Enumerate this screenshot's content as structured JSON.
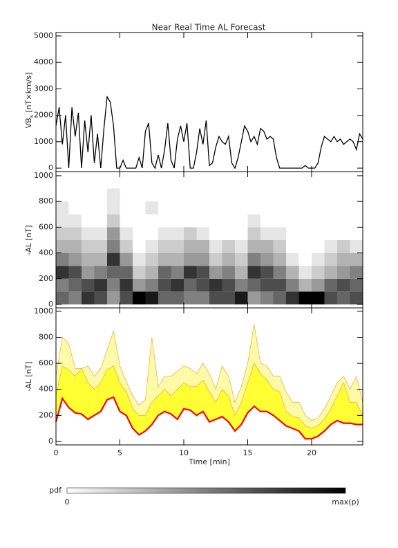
{
  "chart_data": [
    {
      "type": "line",
      "title": "Near Real Time AL Forecast",
      "y_label": {
        "main": "VB",
        "sub": "s",
        "unit": " [nT×km/s]"
      },
      "xlim": [
        0,
        24
      ],
      "xticks": [
        0,
        5,
        10,
        15,
        20
      ],
      "ylim": [
        -130,
        5130
      ],
      "yticks": [
        0,
        1000,
        2000,
        3000,
        4000,
        5000
      ],
      "color": "#000000",
      "x": [
        0,
        0.25,
        0.5,
        0.75,
        1,
        1.25,
        1.5,
        1.75,
        2,
        2.25,
        2.5,
        2.75,
        3,
        3.25,
        3.5,
        3.75,
        4,
        4.25,
        4.5,
        4.75,
        5,
        5.25,
        5.5,
        5.75,
        6,
        6.25,
        6.5,
        6.75,
        7,
        7.25,
        7.5,
        7.75,
        8,
        8.25,
        8.5,
        8.75,
        9,
        9.25,
        9.5,
        9.75,
        10,
        10.25,
        10.5,
        10.75,
        11,
        11.25,
        11.5,
        11.75,
        12,
        12.25,
        12.5,
        12.75,
        13,
        13.25,
        13.5,
        13.75,
        14,
        14.25,
        14.5,
        14.75,
        15,
        15.25,
        15.5,
        15.75,
        16,
        16.25,
        16.5,
        16.75,
        17,
        17.25,
        17.5,
        17.75,
        18,
        18.25,
        18.5,
        18.75,
        19,
        19.25,
        19.5,
        19.75,
        20,
        20.25,
        20.5,
        20.75,
        21,
        21.25,
        21.5,
        21.75,
        22,
        22.25,
        22.5,
        22.75,
        23,
        23.25,
        23.5,
        23.75,
        24
      ],
      "values": [
        1600,
        2300,
        900,
        2000,
        0,
        2300,
        1200,
        2100,
        0,
        1800,
        600,
        2000,
        200,
        1300,
        0,
        1500,
        2700,
        2500,
        1600,
        0,
        0,
        300,
        0,
        0,
        0,
        0,
        400,
        0,
        1400,
        1700,
        200,
        0,
        500,
        0,
        700,
        1700,
        300,
        0,
        1100,
        1600,
        1000,
        1700,
        0,
        0,
        600,
        1500,
        900,
        1800,
        100,
        200,
        800,
        1200,
        1000,
        900,
        1200,
        200,
        0,
        400,
        1000,
        1600,
        1400,
        1000,
        1200,
        900,
        1500,
        1400,
        1100,
        1200,
        1100,
        400,
        0,
        0,
        0,
        0,
        0,
        0,
        0,
        0,
        100,
        0,
        0,
        0,
        200,
        800,
        1200,
        1100,
        1000,
        1200,
        1000,
        1100,
        900,
        1000,
        1100,
        1000,
        700,
        1300,
        1100
      ]
    },
    {
      "type": "heatmap",
      "y_label": "-AL [nT]",
      "xlim": [
        0,
        24
      ],
      "xticks": [
        0,
        5,
        10,
        15,
        20
      ],
      "ylim": [
        -27,
        1032
      ],
      "yticks": [
        0,
        200,
        400,
        600,
        800,
        1000
      ],
      "x_bins": [
        0,
        1,
        2,
        3,
        4,
        5,
        6,
        7,
        8,
        9,
        10,
        11,
        12,
        13,
        14,
        15,
        16,
        17,
        18,
        19,
        20,
        21,
        22,
        23,
        24
      ],
      "y_bins": [
        0,
        100,
        200,
        300,
        400,
        500,
        600,
        700,
        800,
        900,
        1000
      ],
      "values": [
        [
          0.6,
          0.5,
          0.8,
          0.5,
          0.3,
          0.2,
          0.1,
          0.1,
          0,
          0
        ],
        [
          0.5,
          0.6,
          0.7,
          0.4,
          0.3,
          0.2,
          0.1,
          0,
          0,
          0
        ],
        [
          0.8,
          0.7,
          0.4,
          0.3,
          0.2,
          0.1,
          0,
          0,
          0,
          0
        ],
        [
          0.7,
          0.8,
          0.5,
          0.3,
          0.2,
          0.1,
          0,
          0,
          0,
          0
        ],
        [
          0.4,
          0.5,
          0.6,
          0.8,
          0.5,
          0.4,
          0.2,
          0.1,
          0.1,
          0
        ],
        [
          0.7,
          0.8,
          0.6,
          0.4,
          0.2,
          0.1,
          0,
          0,
          0,
          0
        ],
        [
          1,
          0.4,
          0.2,
          0.1,
          0,
          0,
          0,
          0,
          0,
          0
        ],
        [
          0.9,
          0.5,
          0.3,
          0.2,
          0.1,
          0,
          0,
          0.1,
          0,
          0
        ],
        [
          0.6,
          0.7,
          0.6,
          0.3,
          0.2,
          0.1,
          0,
          0,
          0,
          0
        ],
        [
          0.6,
          0.8,
          0.5,
          0.3,
          0.2,
          0.1,
          0,
          0,
          0,
          0
        ],
        [
          0.5,
          0.6,
          0.8,
          0.4,
          0.3,
          0.2,
          0,
          0,
          0,
          0
        ],
        [
          0.5,
          0.7,
          0.7,
          0.4,
          0.3,
          0.1,
          0,
          0,
          0,
          0
        ],
        [
          0.7,
          0.8,
          0.4,
          0.2,
          0.1,
          0,
          0,
          0,
          0,
          0
        ],
        [
          0.7,
          0.7,
          0.5,
          0.3,
          0.2,
          0,
          0,
          0,
          0,
          0
        ],
        [
          0.9,
          0.5,
          0.3,
          0.2,
          0.1,
          0,
          0,
          0,
          0,
          0
        ],
        [
          0.4,
          0.6,
          0.8,
          0.5,
          0.3,
          0.2,
          0.1,
          0,
          0,
          0
        ],
        [
          0.5,
          0.7,
          0.7,
          0.4,
          0.3,
          0.1,
          0,
          0,
          0,
          0
        ],
        [
          0.6,
          0.7,
          0.5,
          0.3,
          0.2,
          0.1,
          0,
          0,
          0,
          0
        ],
        [
          0.8,
          0.5,
          0.3,
          0.1,
          0,
          0,
          0,
          0,
          0,
          0
        ],
        [
          1,
          0.3,
          0.1,
          0,
          0,
          0,
          0,
          0,
          0,
          0
        ],
        [
          1,
          0.4,
          0.2,
          0.1,
          0,
          0,
          0,
          0,
          0,
          0
        ],
        [
          0.7,
          0.6,
          0.3,
          0.2,
          0.1,
          0,
          0,
          0,
          0,
          0
        ],
        [
          0.6,
          0.7,
          0.4,
          0.3,
          0.2,
          0,
          0,
          0,
          0,
          0
        ],
        [
          0.7,
          0.6,
          0.5,
          0.3,
          0.1,
          0,
          0,
          0,
          0,
          0
        ]
      ],
      "colorbar": {
        "label": "pdf",
        "min_label": "0",
        "max_label": "max(p)"
      }
    },
    {
      "type": "area",
      "y_label": "-AL [nT]",
      "x_label": "Time [min]",
      "xlim": [
        0,
        24
      ],
      "xticks": [
        0,
        5,
        10,
        15,
        20
      ],
      "ylim": [
        -27,
        1026
      ],
      "yticks": [
        0,
        200,
        400,
        600,
        800,
        1000
      ],
      "x": [
        0,
        0.5,
        1,
        1.5,
        2,
        2.5,
        3,
        3.5,
        4,
        4.5,
        5,
        5.5,
        6,
        6.5,
        7,
        7.5,
        8,
        8.5,
        9,
        9.5,
        10,
        10.5,
        11,
        11.5,
        12,
        12.5,
        13,
        13.5,
        14,
        14.5,
        15,
        15.5,
        16,
        16.5,
        17,
        17.5,
        18,
        18.5,
        19,
        19.5,
        20,
        20.5,
        21,
        21.5,
        22,
        22.5,
        23,
        23.5,
        24
      ],
      "series": [
        {
          "color": "#fffaa8",
          "stroke": "#f5a623",
          "values": [
            500,
            800,
            750,
            560,
            560,
            580,
            500,
            560,
            700,
            850,
            580,
            460,
            350,
            280,
            320,
            800,
            420,
            500,
            500,
            540,
            580,
            560,
            520,
            600,
            520,
            400,
            580,
            500,
            300,
            420,
            600,
            900,
            600,
            580,
            500,
            500,
            380,
            300,
            300,
            200,
            160,
            180,
            250,
            350,
            450,
            500,
            400,
            500,
            300
          ]
        },
        {
          "color": "#ffff33",
          "stroke": "#f5a623",
          "values": [
            350,
            580,
            550,
            500,
            560,
            450,
            400,
            450,
            550,
            580,
            450,
            380,
            250,
            200,
            200,
            300,
            350,
            400,
            350,
            400,
            450,
            420,
            420,
            470,
            380,
            300,
            400,
            350,
            200,
            300,
            450,
            600,
            520,
            470,
            400,
            380,
            230,
            190,
            180,
            120,
            100,
            120,
            170,
            250,
            350,
            450,
            300,
            300,
            200
          ]
        },
        {
          "color": "#ff0000",
          "values": [
            150,
            330,
            260,
            220,
            210,
            170,
            200,
            230,
            320,
            340,
            230,
            200,
            100,
            50,
            80,
            130,
            200,
            230,
            210,
            170,
            250,
            240,
            200,
            230,
            150,
            170,
            190,
            150,
            80,
            130,
            220,
            270,
            230,
            230,
            200,
            160,
            120,
            100,
            80,
            20,
            20,
            40,
            80,
            130,
            160,
            140,
            140,
            130,
            130
          ]
        }
      ]
    }
  ]
}
